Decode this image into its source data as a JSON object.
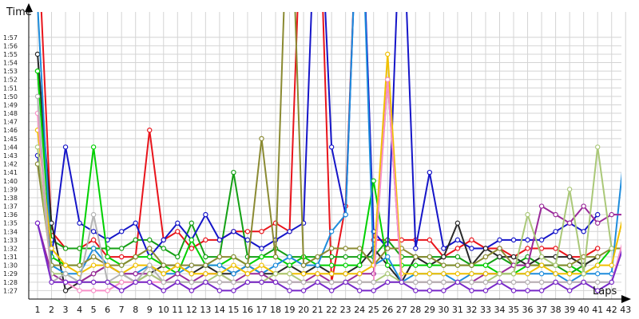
{
  "chart_data": {
    "type": "line",
    "ylabel": "Time",
    "xlabel": "Laps",
    "x": [
      1,
      2,
      3,
      4,
      5,
      6,
      7,
      8,
      9,
      10,
      11,
      12,
      13,
      14,
      15,
      16,
      17,
      18,
      19,
      20,
      21,
      22,
      23,
      24,
      25,
      26,
      27,
      28,
      29,
      30,
      31,
      32,
      33,
      34,
      35,
      36,
      37,
      38,
      39,
      40,
      41,
      42,
      43
    ],
    "x_tick_labels": [
      "1",
      "2",
      "3",
      "4",
      "5",
      "6",
      "7",
      "8",
      "9",
      "10",
      "11",
      "12",
      "13",
      "14",
      "15",
      "16",
      "17",
      "18",
      "19",
      "20",
      "21",
      "22",
      "23",
      "24",
      "25",
      "26",
      "27",
      "28",
      "29",
      "30",
      "31",
      "32",
      "33",
      "34",
      "35",
      "36",
      "37",
      "38",
      "39",
      "40",
      "41",
      "42",
      "43"
    ],
    "y_tick_values": [
      87,
      88,
      89,
      90,
      91,
      92,
      93,
      94,
      95,
      96,
      97,
      98,
      99,
      100,
      101,
      102,
      103,
      104,
      105,
      106,
      107,
      108,
      109,
      110,
      111,
      112,
      113,
      114,
      115,
      116,
      117
    ],
    "y_tick_labels": [
      "1:27",
      "1:28",
      "1:29",
      "1:30",
      "1:31",
      "1:32",
      "1:33",
      "1:34",
      "1:35",
      "1:36",
      "1:37",
      "1:38",
      "1:39",
      "1:40",
      "1:41",
      "1:42",
      "1:43",
      "1:44",
      "1:45",
      "1:46",
      "1:47",
      "1:48",
      "1:49",
      "1:50",
      "1:51",
      "1:52",
      "1:53",
      "1:54",
      "1:55",
      "1:56",
      "1:57"
    ],
    "ylim": [
      86,
      120
    ],
    "y_unit": "seconds",
    "grid": true,
    "legend": "none",
    "series": [
      {
        "color": "#e8141b",
        "values": [
          130,
          94,
          92,
          92,
          93,
          91,
          91,
          91,
          106,
          93,
          94,
          92,
          93,
          93,
          94,
          94,
          94,
          95,
          94,
          140,
          140,
          88,
          97,
          140,
          93,
          93,
          93,
          93,
          93,
          91,
          92,
          93,
          92,
          92,
          91,
          92,
          92,
          92,
          91,
          91,
          92,
          null,
          null
        ]
      },
      {
        "color": "#14a014",
        "values": [
          113,
          93,
          92,
          92,
          92,
          92,
          92,
          93,
          93,
          92,
          91,
          95,
          91,
          91,
          101,
          91,
          91,
          92,
          91,
          91,
          91,
          91,
          91,
          91,
          91,
          93,
          91,
          91,
          91,
          91,
          91,
          90,
          90,
          91,
          90,
          91,
          90,
          90,
          89,
          90,
          91,
          null,
          null
        ]
      },
      {
        "color": "#1515c8",
        "values": [
          103,
          91,
          104,
          95,
          94,
          93,
          94,
          95,
          91,
          93,
          95,
          93,
          96,
          93,
          94,
          93,
          92,
          93,
          94,
          95,
          140,
          104,
          96,
          140,
          94,
          92,
          136,
          92,
          101,
          92,
          93,
          92,
          92,
          93,
          93,
          93,
          93,
          94,
          95,
          94,
          96,
          null,
          null
        ]
      },
      {
        "color": "#282828",
        "values": [
          115,
          95,
          87,
          88,
          89,
          90,
          89,
          88,
          89,
          90,
          90,
          89,
          90,
          89,
          89,
          90,
          89,
          89,
          90,
          89,
          90,
          89,
          89,
          90,
          92,
          90,
          88,
          91,
          90,
          91,
          95,
          90,
          92,
          91,
          91,
          90,
          91,
          91,
          91,
          90,
          91,
          null,
          null
        ]
      },
      {
        "color": "#00d000",
        "values": [
          113,
          91,
          90,
          90,
          104,
          91,
          90,
          91,
          91,
          90,
          89,
          93,
          90,
          90,
          91,
          90,
          91,
          91,
          90,
          91,
          90,
          90,
          90,
          90,
          100,
          90,
          90,
          90,
          90,
          90,
          90,
          90,
          90,
          89,
          89,
          90,
          90,
          90,
          90,
          89,
          90,
          92,
          null
        ]
      },
      {
        "color": "#1e8cdc",
        "values": [
          121,
          90,
          89,
          89,
          92,
          90,
          89,
          89,
          90,
          89,
          89,
          90,
          90,
          90,
          89,
          90,
          89,
          90,
          91,
          90,
          90,
          94,
          96,
          140,
          90,
          91,
          88,
          89,
          89,
          89,
          88,
          89,
          89,
          89,
          89,
          89,
          89,
          89,
          88,
          89,
          89,
          89,
          105
        ]
      },
      {
        "color": "#8a8a32",
        "values": [
          102,
          90,
          90,
          90,
          91,
          90,
          90,
          91,
          92,
          90,
          90,
          90,
          90,
          91,
          91,
          90,
          105,
          91,
          140,
          90,
          91,
          92,
          92,
          92,
          90,
          92,
          92,
          91,
          91,
          90,
          90,
          90,
          91,
          92,
          90,
          90,
          90,
          90,
          90,
          91,
          91,
          92,
          92
        ]
      },
      {
        "color": "#9a2a9a",
        "values": [
          95,
          89,
          88,
          88,
          89,
          90,
          89,
          89,
          89,
          88,
          89,
          88,
          89,
          89,
          88,
          89,
          89,
          88,
          88,
          88,
          89,
          88,
          88,
          89,
          89,
          112,
          88,
          88,
          88,
          88,
          88,
          88,
          89,
          89,
          90,
          90,
          97,
          96,
          95,
          97,
          95,
          96,
          96
        ]
      },
      {
        "color": "#f0c000",
        "values": [
          106,
          92,
          90,
          89,
          90,
          90,
          89,
          90,
          90,
          89,
          90,
          89,
          89,
          89,
          90,
          89,
          90,
          89,
          89,
          89,
          89,
          89,
          89,
          89,
          90,
          115,
          89,
          89,
          89,
          89,
          89,
          89,
          89,
          89,
          89,
          89,
          90,
          89,
          89,
          89,
          90,
          90,
          97
        ]
      },
      {
        "color": "#aac878",
        "values": [
          104,
          89,
          89,
          88,
          88,
          88,
          88,
          88,
          89,
          88,
          88,
          88,
          88,
          89,
          88,
          88,
          88,
          89,
          89,
          88,
          88,
          88,
          88,
          88,
          88,
          89,
          88,
          88,
          88,
          88,
          88,
          88,
          88,
          89,
          89,
          96,
          91,
          90,
          99,
          89,
          104,
          92,
          null
        ]
      },
      {
        "color": "#f890c8",
        "values": [
          108,
          88,
          88,
          87,
          87,
          87,
          88,
          88,
          88,
          88,
          88,
          87,
          88,
          88,
          88,
          88,
          88,
          88,
          88,
          88,
          88,
          88,
          88,
          88,
          88,
          112,
          88,
          88,
          88,
          88,
          88,
          88,
          88,
          88,
          88,
          88,
          88,
          88,
          88,
          88,
          88,
          88,
          94
        ]
      },
      {
        "color": "#b4b4b4",
        "values": [
          110,
          88,
          89,
          88,
          96,
          88,
          89,
          88,
          90,
          88,
          88,
          88,
          88,
          88,
          88,
          88,
          88,
          88,
          88,
          88,
          88,
          88,
          88,
          88,
          88,
          88,
          88,
          88,
          88,
          88,
          88,
          88,
          88,
          88,
          88,
          88,
          88,
          88,
          88,
          88,
          88,
          88,
          null
        ]
      },
      {
        "color": "#7828c8",
        "values": [
          95,
          88,
          88,
          88,
          88,
          88,
          87,
          88,
          88,
          87,
          88,
          87,
          88,
          87,
          87,
          88,
          88,
          88,
          87,
          87,
          88,
          87,
          88,
          87,
          87,
          88,
          88,
          87,
          87,
          87,
          88,
          87,
          87,
          88,
          87,
          87,
          87,
          88,
          87,
          88,
          87,
          88,
          93
        ]
      }
    ]
  }
}
